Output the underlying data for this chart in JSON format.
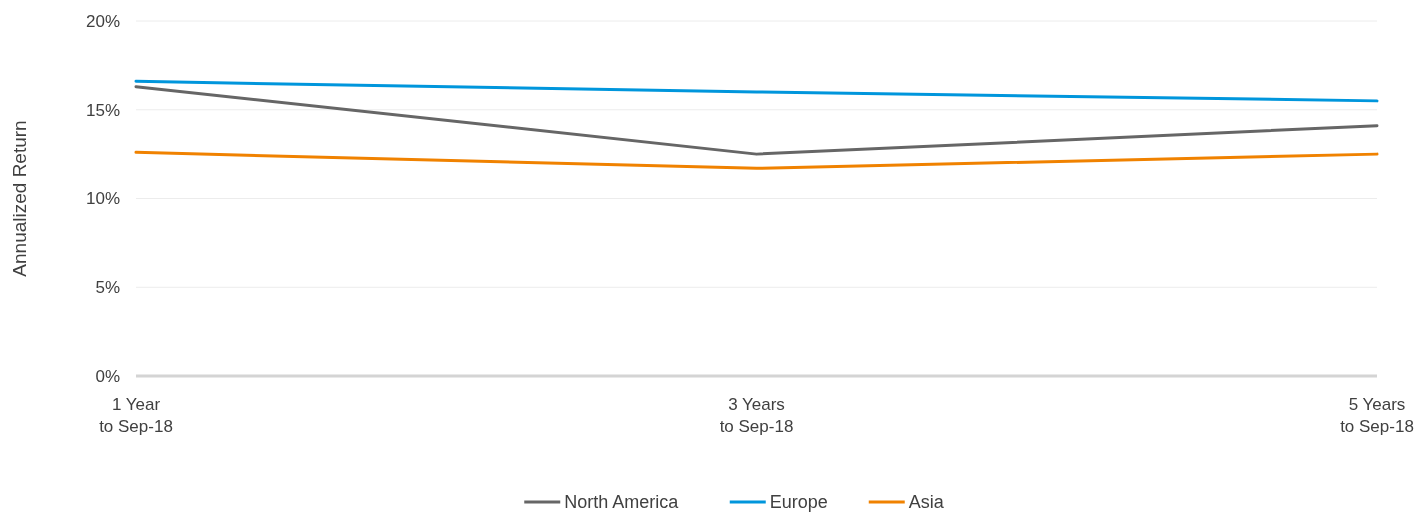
{
  "chart_data": {
    "type": "line",
    "ylabel": "Annualized Return",
    "categories": [
      "1 Year\nto Sep-18",
      "3 Years\nto Sep-18",
      "5 Years\nto Sep-18"
    ],
    "series": [
      {
        "name": "North America",
        "color": "#666666",
        "values": [
          16.3,
          12.5,
          14.1
        ]
      },
      {
        "name": "Europe",
        "color": "#0096dc",
        "values": [
          16.6,
          16.0,
          15.5
        ]
      },
      {
        "name": "Asia",
        "color": "#f08200",
        "values": [
          12.6,
          11.7,
          12.5
        ]
      }
    ],
    "ylim": [
      0,
      20
    ],
    "yticks": [
      {
        "value": 0,
        "label": "0%"
      },
      {
        "value": 5,
        "label": "5%"
      },
      {
        "value": 10,
        "label": "10%"
      },
      {
        "value": 15,
        "label": "15%"
      },
      {
        "value": 20,
        "label": "20%"
      }
    ],
    "grid": "y",
    "legend": "bottom",
    "marker": "none",
    "line_style": "solid"
  }
}
